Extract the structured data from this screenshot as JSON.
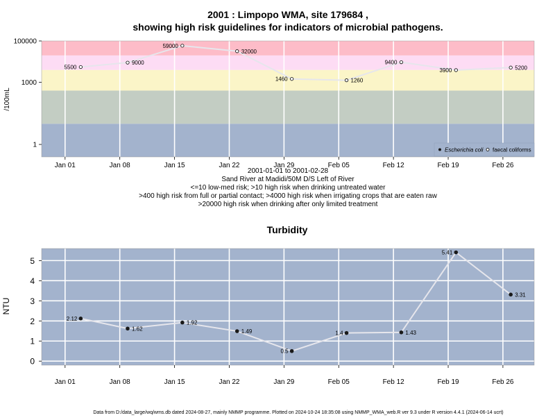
{
  "chart_data": [
    {
      "type": "line",
      "title_line1": "2001 : Limpopo WMA, site 179684 ,",
      "title_line2": "showing high risk guidelines for indicators of microbial pathogens.",
      "ylabel": "/100mL",
      "y_scale": "log",
      "ylim": [
        0.25,
        100000
      ],
      "y_ticks": [
        {
          "value": 1,
          "label": "1"
        },
        {
          "value": 1000,
          "label": "1000"
        },
        {
          "value": 100000,
          "label": "100000"
        }
      ],
      "x_ticks": [
        {
          "date": "2001-01-01",
          "label": "Jan 01"
        },
        {
          "date": "2001-01-08",
          "label": "Jan 08"
        },
        {
          "date": "2001-01-15",
          "label": "Jan 15"
        },
        {
          "date": "2001-01-22",
          "label": "Jan 22"
        },
        {
          "date": "2001-01-29",
          "label": "Jan 29"
        },
        {
          "date": "2001-02-05",
          "label": "Feb 05"
        },
        {
          "date": "2001-02-12",
          "label": "Feb 12"
        },
        {
          "date": "2001-02-19",
          "label": "Feb 19"
        },
        {
          "date": "2001-02-26",
          "label": "Feb 26"
        }
      ],
      "xlim": [
        "2000-12-29",
        "2001-03-02"
      ],
      "bands": [
        {
          "from": 0.25,
          "to": 10,
          "color": "#a3b3cd"
        },
        {
          "from": 10,
          "to": 400,
          "color": "#c3cdc3"
        },
        {
          "from": 400,
          "to": 4000,
          "color": "#fbf5c8"
        },
        {
          "from": 4000,
          "to": 20000,
          "color": "#fddcf4"
        },
        {
          "from": 20000,
          "to": 100000,
          "color": "#fdbcc8"
        }
      ],
      "series": [
        {
          "name": "faecal coliforms",
          "points": [
            {
              "date": "2001-01-03",
              "value": 5500,
              "label": "5500",
              "label_side": "left"
            },
            {
              "date": "2001-01-09",
              "value": 9000,
              "label": "9000",
              "label_side": "right"
            },
            {
              "date": "2001-01-16",
              "value": 59000,
              "label": "59000",
              "label_side": "left"
            },
            {
              "date": "2001-01-23",
              "value": 32000,
              "label": "32000",
              "label_side": "right"
            },
            {
              "date": "2001-01-30",
              "value": 1460,
              "label": "1460",
              "label_side": "left"
            },
            {
              "date": "2001-02-06",
              "value": 1260,
              "label": "1260",
              "label_side": "right"
            },
            {
              "date": "2001-02-13",
              "value": 9400,
              "label": "9400",
              "label_side": "left"
            },
            {
              "date": "2001-02-20",
              "value": 3900,
              "label": "3900",
              "label_side": "left"
            },
            {
              "date": "2001-02-27",
              "value": 5200,
              "label": "5200",
              "label_side": "right"
            }
          ]
        }
      ],
      "legend": {
        "position": "bottom-right",
        "items": [
          "Escherichia coli",
          "faecal coliforms"
        ]
      },
      "caption_lines": [
        "2001-01-01 to 2001-02-28",
        "Sand River at Madidi/50M D/S Left of River",
        "<=10 low-med risk; >10 high risk when drinking untreated water",
        ">400 high risk from full or partial contact; >4000 high risk when irrigating crops that are eaten raw",
        ">20000 high risk when drinking after only limited treatment"
      ]
    },
    {
      "type": "line",
      "title": "Turbidity",
      "ylabel": "NTU",
      "ylim": [
        -0.2,
        5.6
      ],
      "y_ticks": [
        0,
        1,
        2,
        3,
        4,
        5
      ],
      "xlim": [
        "2000-12-29",
        "2001-03-02"
      ],
      "background": "#a3b3cd",
      "series": [
        {
          "name": "",
          "points": [
            {
              "date": "2001-01-03",
              "value": 2.12,
              "label": "2.12",
              "label_side": "left"
            },
            {
              "date": "2001-01-09",
              "value": 1.62,
              "label": "1.62",
              "label_side": "right"
            },
            {
              "date": "2001-01-16",
              "value": 1.92,
              "label": "1.92",
              "label_side": "right"
            },
            {
              "date": "2001-01-23",
              "value": 1.49,
              "label": "1.49",
              "label_side": "right"
            },
            {
              "date": "2001-01-30",
              "value": 0.5,
              "label": "0.5",
              "label_side": "left"
            },
            {
              "date": "2001-02-06",
              "value": 1.4,
              "label": "1.4",
              "label_side": "left"
            },
            {
              "date": "2001-02-13",
              "value": 1.43,
              "label": "1.43",
              "label_side": "right"
            },
            {
              "date": "2001-02-20",
              "value": 5.41,
              "label": "5.41",
              "label_side": "left"
            },
            {
              "date": "2001-02-27",
              "value": 3.31,
              "label": "3.31",
              "label_side": "right"
            }
          ]
        }
      ]
    }
  ],
  "footer": "Data from D:/data_large/wq/wms.db dated 2024-08-27, mainly NMMP programme. Plotted on 2024-10-24 18:35:08 using NMMP_WMA_web.R ver 9.3 under R version 4.4.1 (2024-06-14 ucrt)"
}
